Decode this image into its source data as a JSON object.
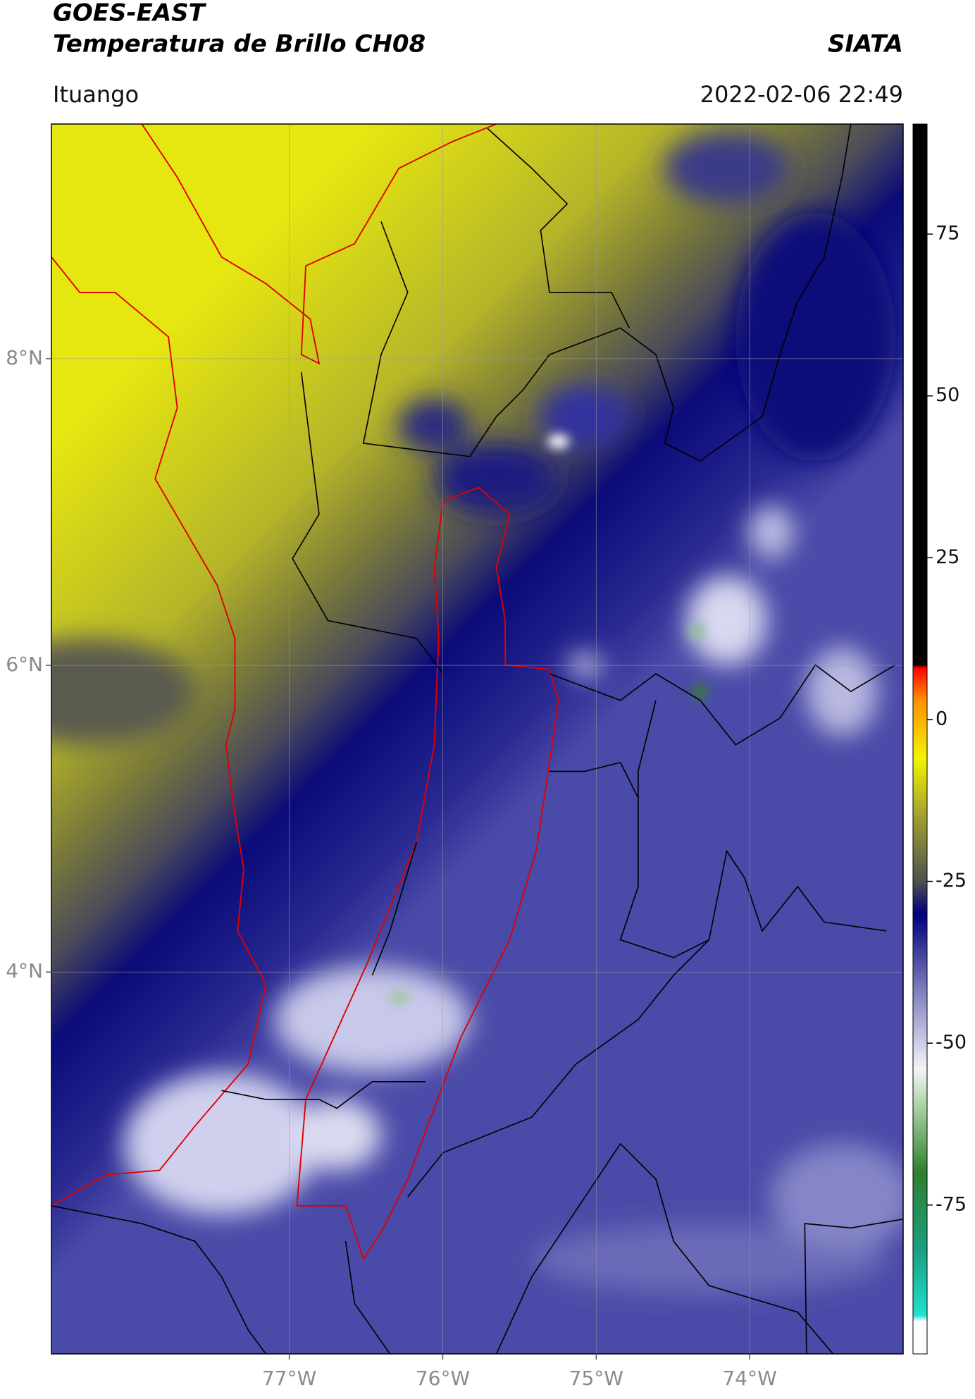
{
  "header": {
    "title": "GOES-EAST",
    "subtitle": "Temperatura de Brillo CH08",
    "source": "SIATA",
    "location": "Ituango",
    "datetime": "2022-02-06 22:49"
  },
  "map": {
    "xlim": [
      -78.55,
      -73.0
    ],
    "ylim": [
      1.51,
      9.53
    ],
    "xticks": [
      {
        "value": -77,
        "label": "77°W"
      },
      {
        "value": -76,
        "label": "76°W"
      },
      {
        "value": -75,
        "label": "75°W"
      },
      {
        "value": -74,
        "label": "74°W"
      }
    ],
    "yticks": [
      {
        "value": 8,
        "label": "8°N"
      },
      {
        "value": 6,
        "label": "6°N"
      },
      {
        "value": 4,
        "label": "4°N"
      }
    ],
    "grid": true
  },
  "colorbar": {
    "lim": [
      -98,
      92
    ],
    "ticks": [
      75,
      50,
      25,
      0,
      -25,
      -50,
      -75
    ],
    "stops": [
      {
        "value": -98,
        "color": "#ffffff"
      },
      {
        "value": -93,
        "color": "#ffffff"
      },
      {
        "value": -92,
        "color": "#20e0d0"
      },
      {
        "value": -82,
        "color": "#1aa080"
      },
      {
        "value": -70,
        "color": "#2f7f2f"
      },
      {
        "value": -60,
        "color": "#a8d0a0"
      },
      {
        "value": -54,
        "color": "#f4f4f8"
      },
      {
        "value": -42,
        "color": "#8080c0"
      },
      {
        "value": -30,
        "color": "#00007a"
      },
      {
        "value": -25,
        "color": "#505050"
      },
      {
        "value": -15,
        "color": "#a0a030"
      },
      {
        "value": -6,
        "color": "#f4f400"
      },
      {
        "value": 3,
        "color": "#ff9000"
      },
      {
        "value": 8,
        "color": "#ff0000"
      },
      {
        "value": 8.5,
        "color": "#000000"
      },
      {
        "value": 92,
        "color": "#000000"
      }
    ]
  }
}
